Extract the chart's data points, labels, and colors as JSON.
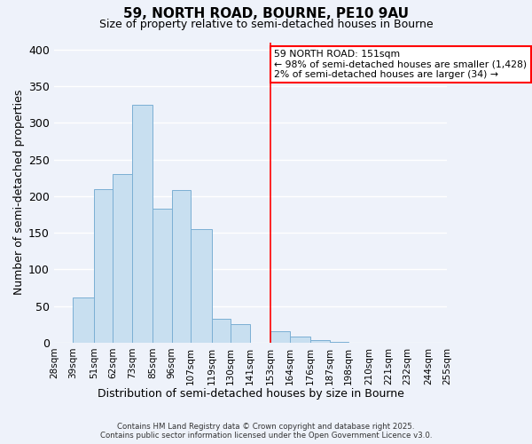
{
  "title": "59, NORTH ROAD, BOURNE, PE10 9AU",
  "subtitle": "Size of property relative to semi-detached houses in Bourne",
  "xlabel": "Distribution of semi-detached houses by size in Bourne",
  "ylabel": "Number of semi-detached properties",
  "bin_labels": [
    "28sqm",
    "39sqm",
    "51sqm",
    "62sqm",
    "73sqm",
    "85sqm",
    "96sqm",
    "107sqm",
    "119sqm",
    "130sqm",
    "141sqm",
    "153sqm",
    "164sqm",
    "176sqm",
    "187sqm",
    "198sqm",
    "210sqm",
    "221sqm",
    "232sqm",
    "244sqm",
    "255sqm"
  ],
  "bin_edges": [
    28,
    39,
    51,
    62,
    73,
    85,
    96,
    107,
    119,
    130,
    141,
    153,
    164,
    176,
    187,
    198,
    210,
    221,
    232,
    244,
    255
  ],
  "bar_heights": [
    0,
    62,
    210,
    230,
    325,
    183,
    208,
    155,
    32,
    25,
    0,
    15,
    8,
    4,
    1,
    0,
    0,
    0,
    0,
    0
  ],
  "bar_color": "#c8dff0",
  "bar_edge_color": "#7bafd4",
  "property_line_x": 153,
  "property_line_color": "red",
  "annotation_title": "59 NORTH ROAD: 151sqm",
  "annotation_line1": "← 98% of semi-detached houses are smaller (1,428)",
  "annotation_line2": "2% of semi-detached houses are larger (34) →",
  "annotation_box_color": "white",
  "annotation_box_edge_color": "red",
  "ylim": [
    0,
    410
  ],
  "yticks": [
    0,
    50,
    100,
    150,
    200,
    250,
    300,
    350,
    400
  ],
  "footer_line1": "Contains HM Land Registry data © Crown copyright and database right 2025.",
  "footer_line2": "Contains public sector information licensed under the Open Government Licence v3.0.",
  "background_color": "#eef2fa",
  "grid_color": "#ffffff"
}
